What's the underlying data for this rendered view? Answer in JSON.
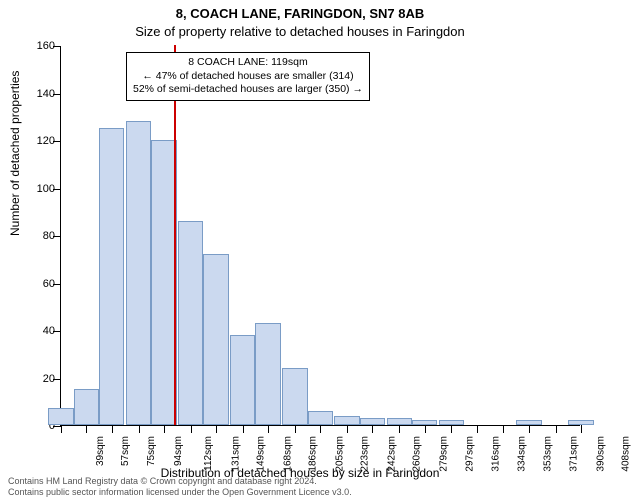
{
  "chart": {
    "type": "histogram",
    "title": "8, COACH LANE, FARINGDON, SN7 8AB",
    "subtitle": "Size of property relative to detached houses in Faringdon",
    "ylabel": "Number of detached properties",
    "xlabel": "Distribution of detached houses by size in Faringdon",
    "background_color": "#ffffff",
    "bar_fill": "#cbd9ef",
    "bar_border": "#7a9cc6",
    "marker_color": "#cc0000",
    "marker_value": 119,
    "ylim": [
      0,
      160
    ],
    "ytick_step": 20,
    "x_categories": [
      "39sqm",
      "57sqm",
      "75sqm",
      "94sqm",
      "112sqm",
      "131sqm",
      "149sqm",
      "168sqm",
      "186sqm",
      "205sqm",
      "223sqm",
      "242sqm",
      "260sqm",
      "279sqm",
      "297sqm",
      "316sqm",
      "334sqm",
      "353sqm",
      "371sqm",
      "390sqm",
      "408sqm"
    ],
    "x_values": [
      39,
      57,
      75,
      94,
      112,
      131,
      149,
      168,
      186,
      205,
      223,
      242,
      260,
      279,
      297,
      316,
      334,
      353,
      371,
      390,
      408
    ],
    "bar_values": [
      7,
      15,
      125,
      128,
      120,
      86,
      72,
      38,
      43,
      24,
      6,
      4,
      3,
      3,
      2,
      2,
      0,
      0,
      2,
      0,
      2
    ],
    "annotation": {
      "line1": "8 COACH LANE: 119sqm",
      "line2": "← 47% of detached houses are smaller (314)",
      "line3": "52% of semi-detached houses are larger (350) →"
    },
    "title_fontsize": 13,
    "subtitle_fontsize": 13,
    "label_fontsize": 12,
    "tick_fontsize": 11,
    "annotation_fontsize": 10.5
  },
  "footer": {
    "line1": "Contains HM Land Registry data © Crown copyright and database right 2024.",
    "line2": "Contains public sector information licensed under the Open Government Licence v3.0."
  }
}
